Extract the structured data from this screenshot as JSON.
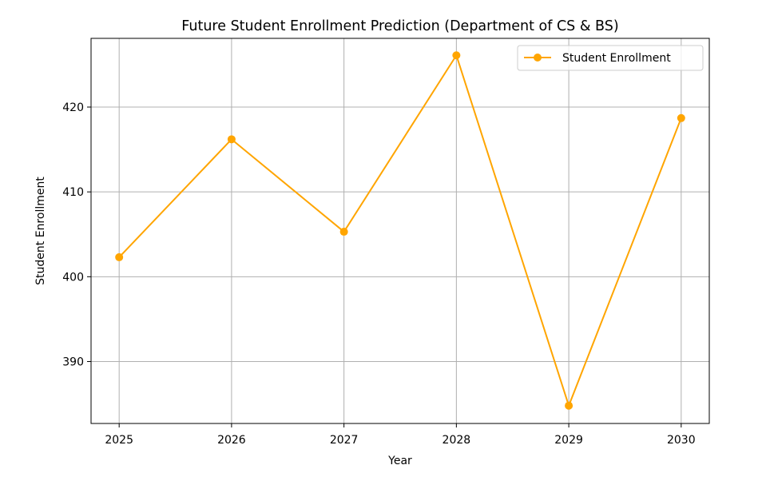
{
  "chart_data": {
    "type": "line",
    "title": "Future Student Enrollment Prediction (Department of CS & BS)",
    "xlabel": "Year",
    "ylabel": "Student Enrollment",
    "x": [
      2025,
      2026,
      2027,
      2028,
      2029,
      2030
    ],
    "series": [
      {
        "name": "Student Enrollment",
        "color": "#FFA500",
        "marker": "circle",
        "values": [
          402.3,
          416.2,
          405.3,
          426.1,
          384.8,
          418.7
        ]
      }
    ],
    "xlim": [
      2024.75,
      2030.25
    ],
    "ylim": [
      382.7,
      428.1
    ],
    "xticks": [
      2025,
      2026,
      2027,
      2028,
      2029,
      2030
    ],
    "yticks": [
      390,
      400,
      410,
      420
    ],
    "grid": true,
    "grid_color": "#b0b0b0",
    "legend_position": "upper right"
  }
}
